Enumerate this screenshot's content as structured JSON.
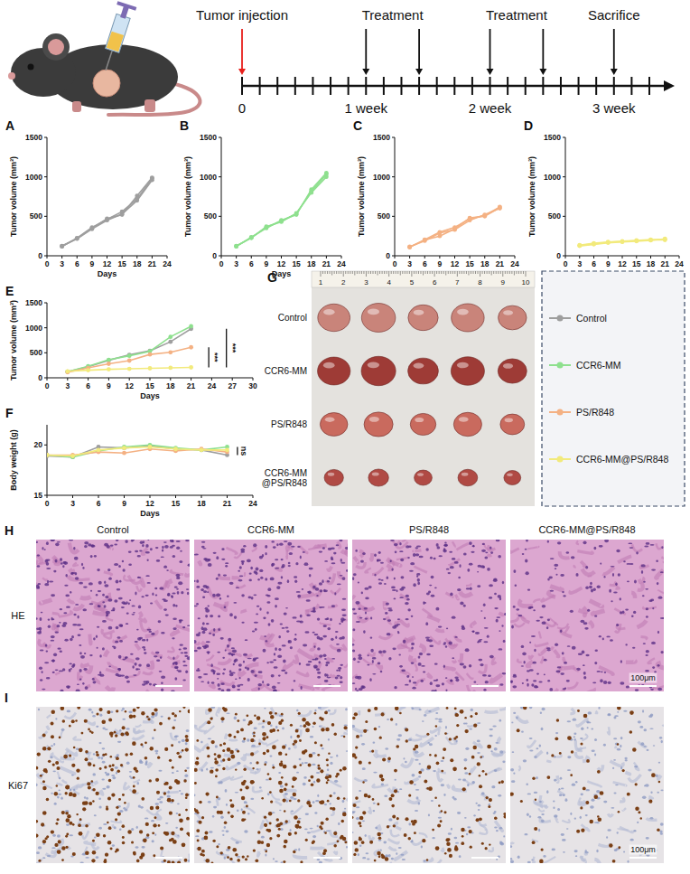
{
  "timeline": {
    "xlim": [
      0,
      23
    ],
    "ticks": [
      0,
      {
        "value": 7,
        "label": "1 week"
      },
      {
        "value": 14,
        "label": "2 week"
      },
      {
        "value": 21,
        "label": "3 week"
      }
    ],
    "events": [
      {
        "label": "Tumor injection",
        "days": [
          0
        ],
        "color": "#e8201c"
      },
      {
        "label": "Treatment",
        "days": [
          7,
          10
        ]
      },
      {
        "label": "Treatment",
        "days": [
          14,
          17
        ]
      },
      {
        "label": "Sacrifice",
        "days": [
          21
        ]
      }
    ]
  },
  "chart_data": [
    {
      "type": "line",
      "label": "A",
      "x_label": "Days",
      "y_label": "Tumor volume (mm³)",
      "x": [
        3,
        6,
        9,
        12,
        15,
        18,
        21
      ],
      "xlim": [
        0,
        24
      ],
      "xticks": [
        0,
        3,
        6,
        9,
        12,
        15,
        18,
        21,
        24
      ],
      "ylim": [
        0,
        1500
      ],
      "yticks": [
        0,
        500,
        1000,
        1500
      ],
      "marker": "circle",
      "series": [
        {
          "color": "#9e9e9e",
          "values": [
            120,
            220,
            350,
            470,
            520,
            760,
            990
          ]
        },
        {
          "color": "#9e9e9e",
          "values": [
            125,
            215,
            340,
            450,
            530,
            700,
            960
          ]
        },
        {
          "color": "#9e9e9e",
          "values": [
            118,
            225,
            360,
            460,
            560,
            720,
            980
          ]
        }
      ]
    },
    {
      "type": "line",
      "label": "B",
      "x_label": "Days",
      "y_label": "Tumor volume (mm³)",
      "x": [
        3,
        6,
        9,
        12,
        15,
        18,
        21
      ],
      "xlim": [
        0,
        24
      ],
      "xticks": [
        0,
        3,
        6,
        9,
        12,
        15,
        18,
        21,
        24
      ],
      "ylim": [
        0,
        1500
      ],
      "yticks": [
        0,
        500,
        1000,
        1500
      ],
      "marker": "circle",
      "series": [
        {
          "color": "#8ee08e",
          "values": [
            120,
            230,
            360,
            440,
            530,
            820,
            1030
          ]
        },
        {
          "color": "#8ee08e",
          "values": [
            125,
            225,
            370,
            430,
            540,
            800,
            1000
          ]
        },
        {
          "color": "#8ee08e",
          "values": [
            118,
            235,
            350,
            450,
            520,
            840,
            1050
          ]
        }
      ]
    },
    {
      "type": "line",
      "label": "C",
      "x_label": "Days",
      "y_label": "Tumor volume (mm³)",
      "x": [
        3,
        6,
        9,
        12,
        15,
        18,
        21
      ],
      "xlim": [
        0,
        24
      ],
      "xticks": [
        0,
        3,
        6,
        9,
        12,
        15,
        18,
        21,
        24
      ],
      "ylim": [
        0,
        1500
      ],
      "yticks": [
        0,
        500,
        1000,
        1500
      ],
      "marker": "circle",
      "series": [
        {
          "color": "#f4b183",
          "values": [
            110,
            200,
            250,
            340,
            480,
            500,
            610
          ]
        },
        {
          "color": "#f4b183",
          "values": [
            115,
            190,
            290,
            330,
            450,
            520,
            600
          ]
        },
        {
          "color": "#f4b183",
          "values": [
            108,
            205,
            300,
            360,
            470,
            510,
            620
          ]
        }
      ]
    },
    {
      "type": "line",
      "label": "D",
      "x_label": "Days",
      "y_label": "Tumor volume (mm³)",
      "x": [
        3,
        6,
        9,
        12,
        15,
        18,
        21
      ],
      "xlim": [
        0,
        24
      ],
      "xticks": [
        0,
        3,
        6,
        9,
        12,
        15,
        18,
        21,
        24
      ],
      "ylim": [
        0,
        1500
      ],
      "yticks": [
        0,
        500,
        1000,
        1500
      ],
      "marker": "circle",
      "series": [
        {
          "color": "#f2ea7c",
          "values": [
            130,
            150,
            170,
            180,
            190,
            200,
            210
          ]
        },
        {
          "color": "#f2ea7c",
          "values": [
            135,
            160,
            175,
            185,
            195,
            205,
            200
          ]
        },
        {
          "color": "#f2ea7c",
          "values": [
            125,
            145,
            165,
            175,
            185,
            195,
            215
          ]
        }
      ]
    },
    {
      "type": "line",
      "label": "E",
      "x_label": "Days",
      "y_label": "Tumor volume (mm³)",
      "x": [
        3,
        6,
        9,
        12,
        15,
        18,
        21
      ],
      "xlim": [
        0,
        30
      ],
      "xticks": [
        0,
        3,
        6,
        9,
        12,
        15,
        18,
        21,
        24,
        27,
        30
      ],
      "ylim": [
        0,
        1500
      ],
      "yticks": [
        0,
        500,
        1000,
        1500
      ],
      "marker": "circle",
      "legend": "right",
      "series": [
        {
          "name": "Control",
          "color": "#9e9e9e",
          "values": [
            120,
            220,
            350,
            460,
            540,
            720,
            980
          ]
        },
        {
          "name": "CCR6-MM",
          "color": "#8ee08e",
          "values": [
            122,
            230,
            360,
            440,
            530,
            820,
            1030
          ]
        },
        {
          "name": "PS/R848",
          "color": "#f4b183",
          "values": [
            111,
            198,
            280,
            343,
            467,
            510,
            610
          ]
        },
        {
          "name": "CCR6-MM@PS/R848",
          "color": "#f2ea7c",
          "values": [
            130,
            152,
            170,
            180,
            190,
            200,
            208
          ]
        }
      ],
      "annotations": [
        {
          "text": "***",
          "from": 3,
          "to": 2
        },
        {
          "text": "***",
          "from": 3,
          "to": 0
        }
      ]
    },
    {
      "type": "line",
      "label": "F",
      "x_label": "Days",
      "y_label": "Body weight (g)",
      "x": [
        0,
        3,
        6,
        9,
        12,
        15,
        18,
        21
      ],
      "xlim": [
        0,
        24
      ],
      "xticks": [
        0,
        3,
        6,
        9,
        12,
        15,
        18,
        21,
        24
      ],
      "ylim": [
        15,
        22
      ],
      "yticks": [
        15,
        20
      ],
      "marker": "circle",
      "series": [
        {
          "color": "#9e9e9e",
          "values": [
            18.9,
            18.8,
            19.8,
            19.7,
            19.9,
            19.6,
            19.5,
            19.0
          ]
        },
        {
          "color": "#8ee08e",
          "values": [
            19.0,
            18.8,
            19.4,
            19.8,
            20.0,
            19.7,
            19.5,
            19.8
          ]
        },
        {
          "color": "#f4b183",
          "values": [
            19.0,
            19.0,
            19.3,
            19.2,
            19.6,
            19.4,
            19.6,
            19.3
          ]
        },
        {
          "color": "#f2ea7c",
          "values": [
            19.0,
            18.9,
            19.5,
            19.7,
            19.8,
            19.6,
            19.5,
            19.5
          ]
        }
      ],
      "annotations": [
        {
          "text": "ns",
          "from": 0,
          "to": 1
        }
      ]
    }
  ],
  "photo": {
    "label": "G",
    "ruler": [
      1,
      2,
      3,
      4,
      5,
      6,
      7,
      8,
      9,
      10
    ],
    "tumors_per_row": 5
  },
  "histology": {
    "scale_bar": "100μm",
    "rows": [
      {
        "label": "H",
        "stain": "HE"
      },
      {
        "label": "I",
        "stain": "Ki67"
      }
    ]
  }
}
